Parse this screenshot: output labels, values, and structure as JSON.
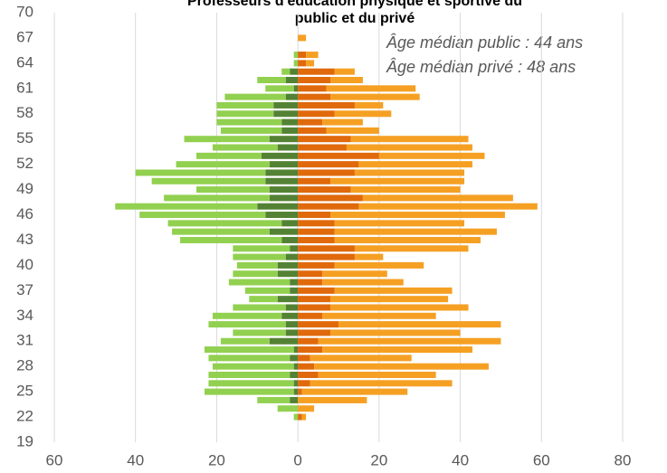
{
  "chart_data": {
    "type": "bar",
    "orientation": "horizontal",
    "stacked": true,
    "title": [
      "Professeurs d'éducation physique et sportive du",
      "public et du privé"
    ],
    "annotations": [
      "Âge médian  public : 44 ans",
      "Âge médian privé : 48 ans"
    ],
    "y": [
      22,
      23,
      24,
      25,
      26,
      27,
      28,
      29,
      30,
      31,
      32,
      33,
      34,
      35,
      36,
      37,
      38,
      39,
      40,
      41,
      42,
      43,
      44,
      45,
      46,
      47,
      48,
      49,
      50,
      51,
      52,
      53,
      54,
      55,
      56,
      57,
      58,
      59,
      60,
      61,
      62,
      63,
      64,
      65,
      66,
      67
    ],
    "ylim": [
      19,
      70
    ],
    "yticks": [
      19,
      22,
      25,
      28,
      31,
      34,
      37,
      40,
      43,
      46,
      49,
      52,
      55,
      58,
      61,
      64,
      67,
      70
    ],
    "xlim": [
      -60,
      80
    ],
    "xticks": [
      {
        "value": -60,
        "label": "60"
      },
      {
        "value": -40,
        "label": "40"
      },
      {
        "value": -20,
        "label": "20"
      },
      0,
      20,
      40,
      60,
      80
    ],
    "grid": true,
    "series": [
      {
        "color": "#548235",
        "values": [
          0,
          0,
          -2,
          -1,
          -1,
          -2,
          -1,
          -2,
          -1,
          -7,
          -3,
          -3,
          -4,
          -3,
          -5,
          -2,
          -2,
          -5,
          -5,
          -3,
          -2,
          -4,
          -7,
          -4,
          -8,
          -10,
          -7,
          -7,
          -8,
          -8,
          -7,
          -9,
          -5,
          -7,
          -4,
          -4,
          -6,
          -6,
          -3,
          -1,
          -3,
          -2,
          0,
          0,
          0,
          0
        ]
      },
      {
        "color": "#92d050",
        "values": [
          -1,
          -5,
          -8,
          -22,
          -21,
          -20,
          -20,
          -20,
          -22,
          -12,
          -13,
          -19,
          -17,
          -13,
          -7,
          -11,
          -15,
          -11,
          -10,
          -13,
          -14,
          -25,
          -24,
          -28,
          -31,
          -35,
          -26,
          -18,
          -28,
          -32,
          -23,
          -16,
          -16,
          -21,
          -15,
          -16,
          -14,
          -14,
          -15,
          -7,
          -7,
          -2,
          -1,
          -1,
          0,
          0
        ]
      },
      {
        "color": "#e0690c",
        "values": [
          1,
          0,
          0,
          1,
          3,
          5,
          4,
          3,
          6,
          5,
          8,
          10,
          6,
          8,
          8,
          9,
          6,
          6,
          9,
          14,
          14,
          9,
          9,
          9,
          8,
          15,
          16,
          13,
          8,
          14,
          15,
          20,
          12,
          13,
          7,
          6,
          9,
          14,
          8,
          7,
          8,
          9,
          2,
          2,
          0,
          0
        ]
      },
      {
        "color": "#f5a023",
        "values": [
          1,
          4,
          17,
          26,
          35,
          29,
          43,
          25,
          37,
          45,
          32,
          40,
          28,
          34,
          29,
          29,
          20,
          16,
          22,
          7,
          28,
          36,
          40,
          32,
          43,
          44,
          37,
          27,
          33,
          27,
          28,
          26,
          31,
          29,
          13,
          10,
          14,
          7,
          22,
          22,
          8,
          5,
          2,
          3,
          0,
          2
        ]
      }
    ]
  }
}
